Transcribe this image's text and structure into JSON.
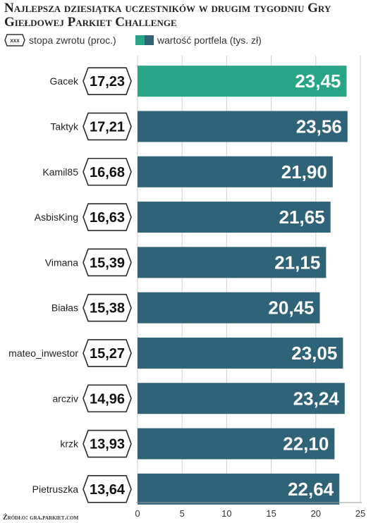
{
  "title": "Najlepsza dziesiątka uczestników w drugim tygodniu Gry Giełdowej Parkiet Challenge",
  "legend": {
    "rate_marker": "xxx",
    "rate_label": "stopa zwrotu (proc.)",
    "value_label": "wartość portfela (tys. zł)"
  },
  "source": "Źródło: gra.parkiet.com",
  "colors": {
    "highlight_bar": "#27a585",
    "bar": "#2e6378"
  },
  "chart_data": {
    "type": "bar",
    "orientation": "horizontal",
    "categories": [
      "Gacek",
      "Taktyk",
      "Kamil85",
      "AsbisKing",
      "Vimana",
      "Białas",
      "mateo_inwestor",
      "arcziv",
      "krzk",
      "Pietruszka"
    ],
    "rates": [
      "17,23",
      "17,21",
      "16,68",
      "16,63",
      "15,39",
      "15,38",
      "15,27",
      "14,96",
      "13,93",
      "13,64"
    ],
    "values": [
      23.45,
      23.56,
      21.9,
      21.65,
      21.15,
      20.45,
      23.05,
      23.24,
      22.1,
      22.64
    ],
    "value_labels": [
      "23,45",
      "23,56",
      "21,90",
      "21,65",
      "21,15",
      "20,45",
      "23,05",
      "23,24",
      "22,10",
      "22,64"
    ],
    "highlight_index": 0,
    "xlim": [
      0,
      25
    ],
    "xticks": [
      0,
      5,
      10,
      15,
      20,
      25
    ],
    "grid": true
  }
}
